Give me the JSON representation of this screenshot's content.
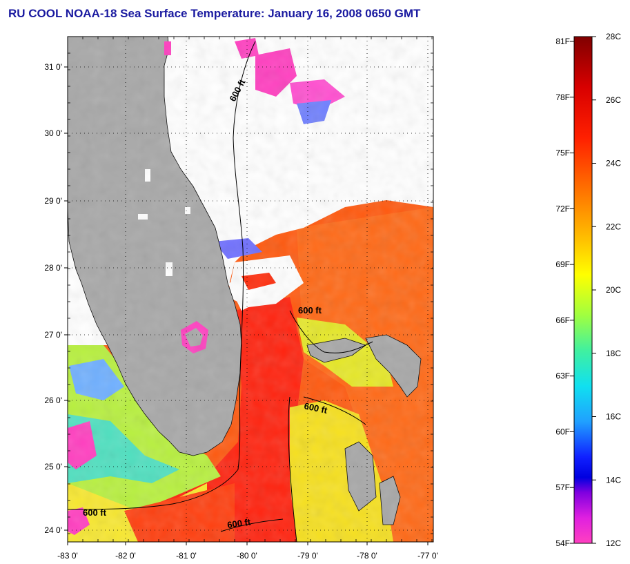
{
  "title": "RU COOL  NOAA-18  Sea Surface Temperature:  January 16, 2008 0650 GMT",
  "map": {
    "lat_labels": [
      "31 0'",
      "30 0'",
      "29 0'",
      "28 0'",
      "27 0'",
      "26 0'",
      "25 0'",
      "24 0'"
    ],
    "lon_labels": [
      "-83 0'",
      "-82 0'",
      "-81 0'",
      "-80 0'",
      "-79 0'",
      "-78 0'",
      "-77 0'"
    ],
    "contour_labels": [
      "600 ft",
      "600 ft",
      "600 ft",
      "600 ft",
      "600 ft"
    ],
    "colors": {
      "land": "#a8a8a8",
      "cloud": "#ffffff",
      "warm": "#ff5a10",
      "hot": "#ff2a10",
      "cool": "#f0f020",
      "mid": "#b0f040",
      "cold": "#30d0f0",
      "magenta": "#ff30c0"
    }
  },
  "colorbar": {
    "celsius_labels": [
      "28C",
      "26C",
      "24C",
      "22C",
      "20C",
      "18C",
      "16C",
      "14C",
      "12C"
    ],
    "fahrenheit_labels": [
      "81F",
      "78F",
      "75F",
      "72F",
      "69F",
      "66F",
      "63F",
      "60F",
      "57F",
      "54F"
    ]
  }
}
